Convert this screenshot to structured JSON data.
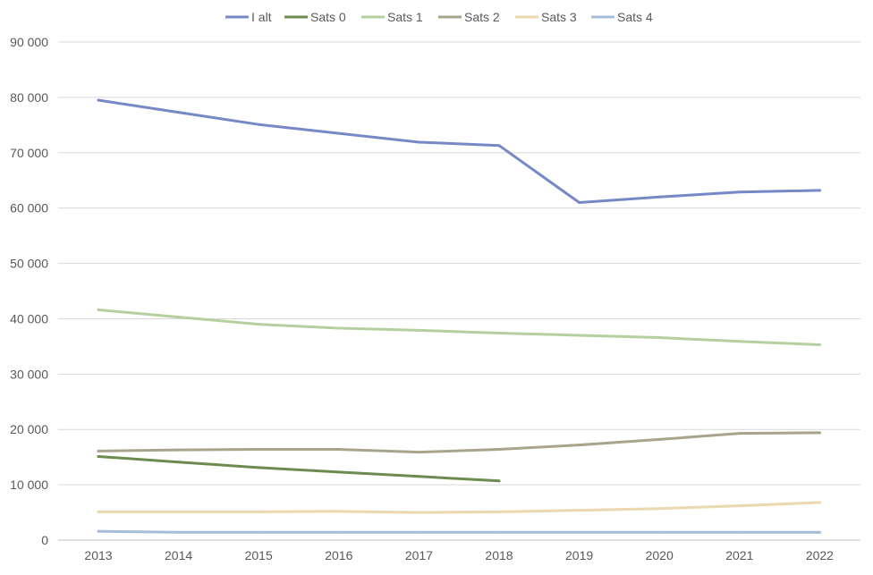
{
  "chart_data": {
    "type": "line",
    "title": "",
    "xlabel": "",
    "ylabel": "",
    "categories": [
      "2013",
      "2014",
      "2015",
      "2016",
      "2017",
      "2018",
      "2019",
      "2020",
      "2021",
      "2022"
    ],
    "ylim": [
      0,
      90000
    ],
    "yticks": [
      0,
      10000,
      20000,
      30000,
      40000,
      50000,
      60000,
      70000,
      80000,
      90000
    ],
    "ytick_labels": [
      "0",
      "10 000",
      "20 000",
      "30 000",
      "40 000",
      "50 000",
      "60 000",
      "70 000",
      "80 000",
      "90 000"
    ],
    "grid": true,
    "legend_position": "top",
    "series": [
      {
        "name": "I alt",
        "color": "#7689C6",
        "values": [
          79500,
          77300,
          75100,
          73500,
          71900,
          71300,
          61000,
          62000,
          62900,
          63200
        ]
      },
      {
        "name": "Sats 0",
        "color": "#6C8B4E",
        "values": [
          15100,
          14100,
          13100,
          12300,
          11500,
          10700,
          null,
          null,
          null,
          null
        ]
      },
      {
        "name": "Sats 1",
        "color": "#B6CFA0",
        "values": [
          41600,
          40300,
          39000,
          38300,
          37900,
          37400,
          37000,
          36600,
          35900,
          35300
        ]
      },
      {
        "name": "Sats 2",
        "color": "#A8A48C",
        "values": [
          16100,
          16300,
          16400,
          16400,
          15900,
          16400,
          17200,
          18200,
          19300,
          19400
        ]
      },
      {
        "name": "Sats 3",
        "color": "#E9D8B0",
        "values": [
          5100,
          5100,
          5100,
          5200,
          5000,
          5100,
          5400,
          5700,
          6200,
          6800
        ]
      },
      {
        "name": "Sats 4",
        "color": "#A6BCD9",
        "values": [
          1600,
          1400,
          1400,
          1400,
          1400,
          1400,
          1400,
          1400,
          1400,
          1400
        ]
      }
    ]
  }
}
